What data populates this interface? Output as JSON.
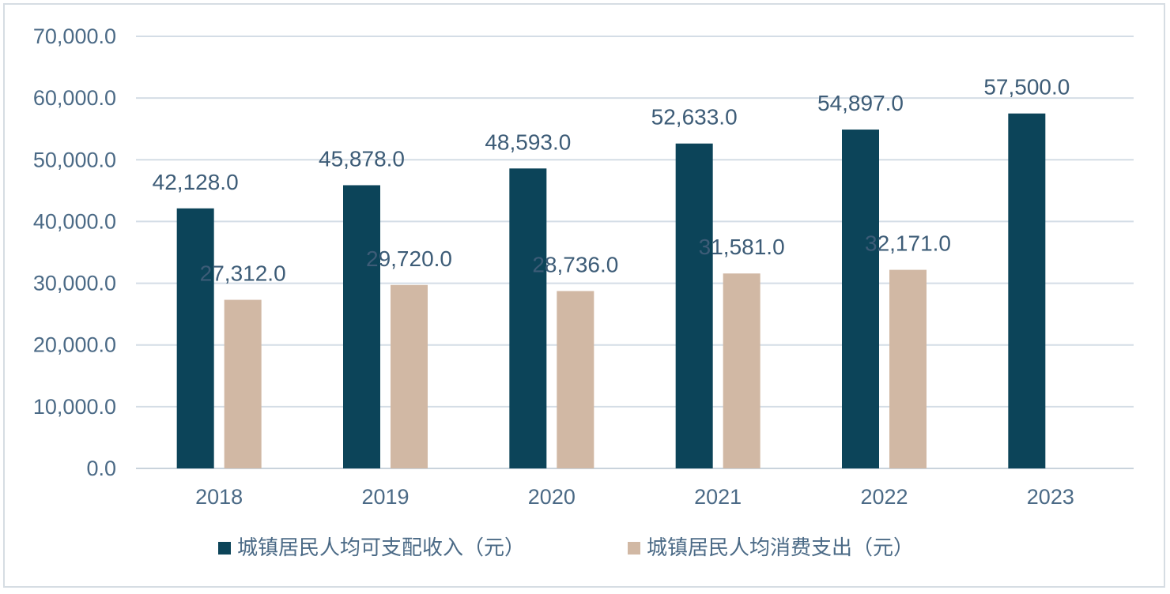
{
  "chart_data": {
    "type": "bar",
    "title": "",
    "xlabel": "",
    "ylabel": "",
    "categories": [
      "2018",
      "2019",
      "2020",
      "2021",
      "2022",
      "2023"
    ],
    "series": [
      {
        "name": "城镇居民人均可支配收入（元）",
        "color": "#0c4459",
        "values": [
          42128.0,
          45878.0,
          48593.0,
          52633.0,
          54897.0,
          57500.0
        ],
        "labels": [
          "42,128.0",
          "45,878.0",
          "48,593.0",
          "52,633.0",
          "54,897.0",
          "57,500.0"
        ]
      },
      {
        "name": "城镇居民人均消费支出（元）",
        "color": "#d1b8a4",
        "values": [
          27312.0,
          29720.0,
          28736.0,
          31581.0,
          32171.0,
          null
        ],
        "labels": [
          "27,312.0",
          "29,720.0",
          "28,736.0",
          "31,581.0",
          "32,171.0",
          null
        ]
      }
    ],
    "ylim": [
      0,
      70000
    ],
    "yticks": [
      0,
      10000,
      20000,
      30000,
      40000,
      50000,
      60000,
      70000
    ],
    "ytick_labels": [
      "0.0",
      "10,000.0",
      "20,000.0",
      "30,000.0",
      "40,000.0",
      "50,000.0",
      "60,000.0",
      "70,000.0"
    ],
    "grid": true,
    "legend_position": "bottom"
  }
}
